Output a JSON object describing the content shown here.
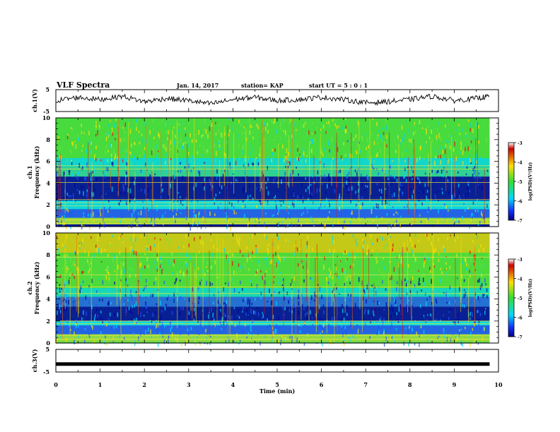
{
  "header": {
    "title": "VLF Spectra",
    "date": "Jan. 14, 2017",
    "station": "station= KAP",
    "start_ut": "start UT =  5 : 0 : 1"
  },
  "chart_data": [
    {
      "type": "line",
      "panel": "ch1-waveform",
      "ylabel": "ch.1(V)",
      "ylim": [
        -5,
        5
      ],
      "yticks": [
        "5",
        "-5"
      ],
      "xlim": [
        0,
        10
      ],
      "note_values": "waveform oscillates roughly between -3 and 3 V across 0-9.8 min",
      "x": [
        0,
        0.5,
        1,
        1.5,
        2,
        2.5,
        3,
        3.5,
        4,
        4.5,
        5,
        5.5,
        6,
        6.5,
        7,
        7.5,
        8,
        8.5,
        9,
        9.5,
        9.8
      ],
      "y": [
        0,
        1.5,
        0.5,
        2,
        -0.5,
        1,
        0,
        -1.5,
        0.5,
        1.5,
        0,
        0.5,
        1.5,
        0.5,
        -1,
        -0.5,
        0.5,
        2,
        0,
        1,
        2
      ]
    },
    {
      "type": "heatmap",
      "panel": "ch1-spectrogram",
      "ylabel": "ch.1 Frequency (kHz)",
      "ylim": [
        0,
        10
      ],
      "yticks": [
        "0",
        "2",
        "4",
        "6",
        "8",
        "10"
      ],
      "xlim": [
        0,
        9.8
      ],
      "colorbar": {
        "label": "log(PSD)(V²/Hz)",
        "range": [
          -7,
          -3
        ],
        "ticks": [
          "-3",
          "-4",
          "-5",
          "-6",
          "-7"
        ]
      }
    },
    {
      "type": "heatmap",
      "panel": "ch2-spectrogram",
      "ylabel": "ch.2 Frequency (kHz)",
      "ylim": [
        0,
        10
      ],
      "yticks": [
        "0",
        "2",
        "4",
        "6",
        "8",
        "10"
      ],
      "xlim": [
        0,
        9.8
      ],
      "colorbar": {
        "label": "log(PSD)(V²/Hz)",
        "range": [
          -7,
          -3
        ],
        "ticks": [
          "-3",
          "-4",
          "-5",
          "-6",
          "-7"
        ]
      }
    },
    {
      "type": "line",
      "panel": "ch3-waveform",
      "ylabel": "ch.3(V)",
      "ylim": [
        -5,
        5
      ],
      "yticks": [
        "5",
        "-5"
      ],
      "xlim": [
        0,
        10
      ],
      "x": [
        0,
        9.8
      ],
      "y": [
        -1.5,
        -1.5
      ]
    }
  ],
  "xaxis": {
    "label": "Time (min)",
    "ticks": [
      "0",
      "1",
      "2",
      "3",
      "4",
      "5",
      "6",
      "7",
      "8",
      "9",
      "10"
    ]
  },
  "colors": {
    "spectro_bg": "#37d34a",
    "deep_blue": "#0000a0",
    "blue": "#2050ff",
    "cyan": "#00d8ff",
    "yellow": "#ffe000",
    "red": "#e01010"
  }
}
